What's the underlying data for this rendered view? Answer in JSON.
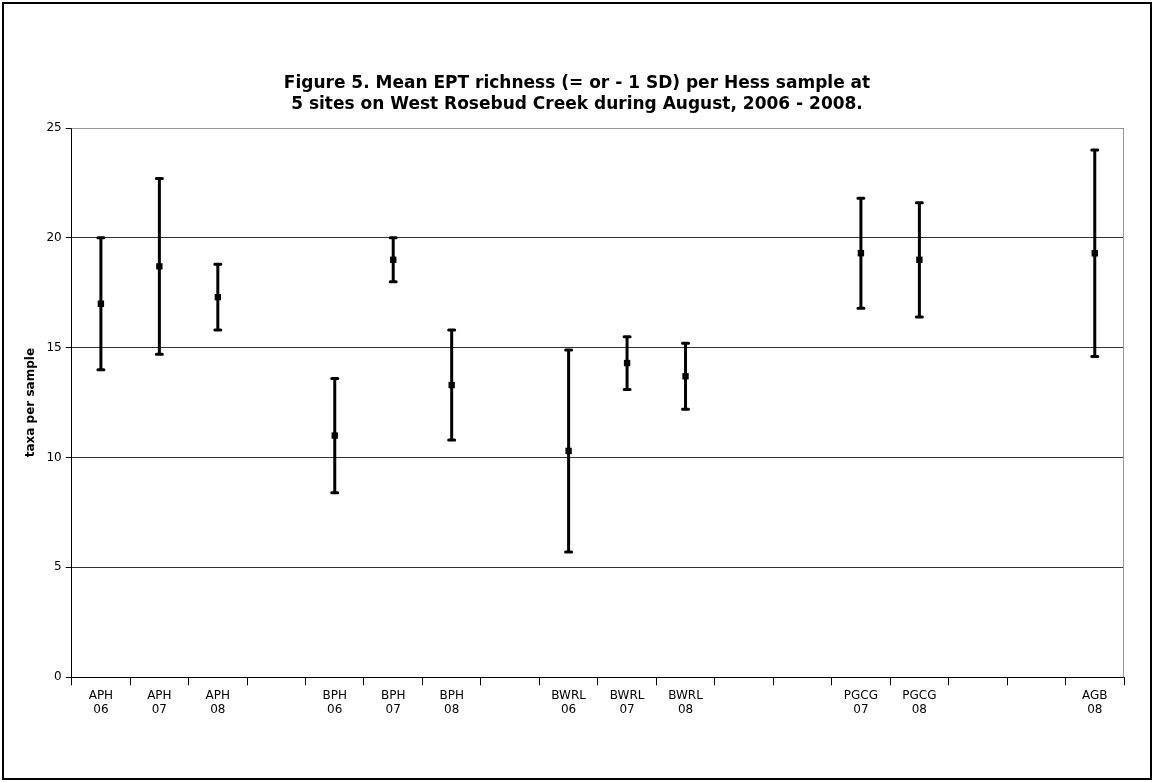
{
  "chart_data": {
    "type": "scatter",
    "title": "Figure 5.  Mean EPT richness (= or - 1 SD) per Hess sample at 5 sites on West Rosebud Creek during August, 2006 - 2008.",
    "ylabel": "taxa per sample",
    "categories": [
      "APH 06",
      "APH 07",
      "APH 08",
      null,
      "BPH 06",
      "BPH 07",
      "BPH 08",
      null,
      "BWRL 06",
      "BWRL 07",
      "BWRL 08",
      null,
      null,
      "PGCG 07",
      "PGCG 08",
      null,
      null,
      "AGB 08"
    ],
    "values": [
      17.0,
      18.7,
      17.3,
      null,
      11.0,
      19.0,
      13.3,
      null,
      10.3,
      14.3,
      13.7,
      null,
      null,
      19.3,
      19.0,
      null,
      null,
      19.3
    ],
    "errors": [
      3.0,
      4.0,
      1.5,
      null,
      2.6,
      1.0,
      2.5,
      null,
      4.6,
      1.2,
      1.5,
      null,
      null,
      2.5,
      2.6,
      null,
      null,
      4.7
    ],
    "color": "#000000",
    "marker": "square",
    "grid": "y",
    "ylim": [
      0,
      25
    ],
    "yticks": [
      0,
      5,
      10,
      15,
      20,
      25
    ]
  }
}
